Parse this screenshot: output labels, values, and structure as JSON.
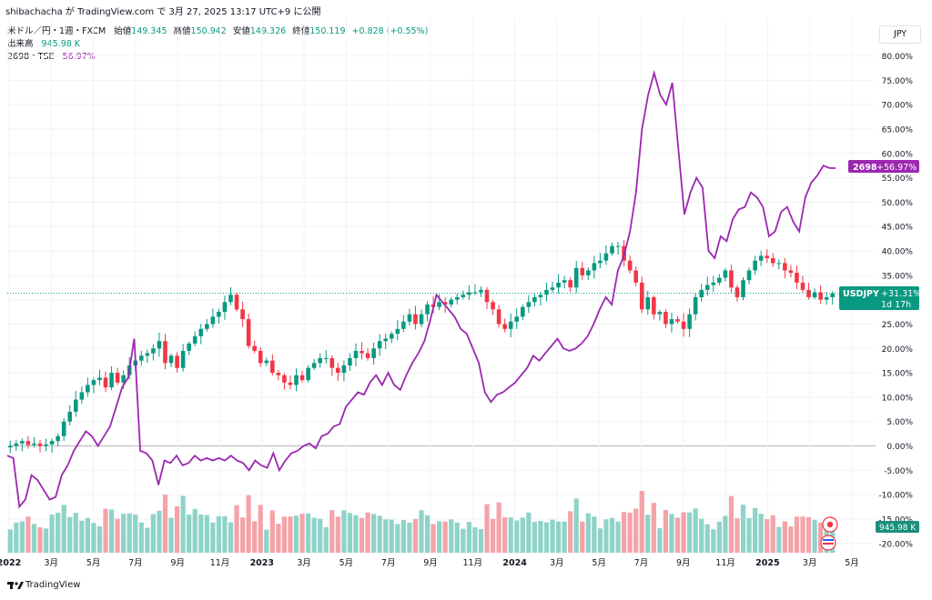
{
  "header": {
    "attribution": "shibachacha が TradingView.com で 3月 27, 2025 13:17 UTC+9 に公開"
  },
  "legend": {
    "symbol": "米ドル／円・1週・FXCM",
    "open_label": "始値",
    "open": "149.345",
    "high_label": "高値",
    "high": "150.942",
    "low_label": "安値",
    "low": "149.326",
    "close_label": "終値",
    "close": "150.119",
    "change": "+0.828 (+0.55%)",
    "volume_label": "出来高",
    "volume": "945.98 K",
    "compare_label": "2698・TSE",
    "compare_value": "56.97%"
  },
  "currency_button": "JPY",
  "price_labels": {
    "compare_tag": "2698",
    "compare_value": "+56.97%",
    "main_tag": "USDJPY",
    "main_value": "+31.31%",
    "countdown": "1d 17h",
    "volume_value": "945.98 K"
  },
  "footer": {
    "brand": "TradingView"
  },
  "colors": {
    "up": "#089981",
    "down": "#f23645",
    "compare": "#9c27b0",
    "vol_up": "#8fd3c8",
    "vol_down": "#f4a3a8"
  },
  "chart_data": {
    "type": "candlestick+line",
    "y_axis": {
      "unit": "%",
      "range": [
        -22,
        82
      ],
      "ticks": [
        80,
        75,
        70,
        65,
        60,
        55,
        50,
        45,
        40,
        35,
        30,
        25,
        20,
        15,
        10,
        5,
        0,
        -5,
        -10,
        -15,
        -20
      ]
    },
    "x_axis": {
      "ticks": [
        "2022",
        "3月",
        "5月",
        "7月",
        "9月",
        "11月",
        "2023",
        "3月",
        "5月",
        "7月",
        "9月",
        "11月",
        "2024",
        "3月",
        "5月",
        "7月",
        "9月",
        "11月",
        "2025",
        "3月",
        "5月"
      ]
    },
    "main_series": {
      "name": "USDJPY",
      "weekly_close_pct": [
        0.0,
        0.5,
        1.0,
        0.2,
        0.5,
        0.0,
        0.3,
        1.0,
        2.0,
        5.0,
        7.0,
        9.5,
        11.0,
        12.5,
        13.5,
        14.0,
        12.0,
        15.0,
        13.0,
        14.5,
        16.5,
        17.5,
        18.5,
        19.0,
        20.0,
        21.5,
        17.0,
        18.5,
        16.0,
        19.5,
        21.0,
        22.5,
        24.0,
        25.0,
        26.5,
        27.5,
        29.5,
        31.0,
        28.0,
        26.0,
        20.5,
        19.5,
        17.0,
        17.5,
        15.0,
        14.5,
        13.0,
        12.5,
        14.5,
        13.5,
        16.0,
        17.0,
        18.0,
        18.0,
        16.0,
        15.0,
        16.5,
        18.0,
        19.5,
        19.0,
        18.0,
        20.0,
        21.5,
        22.0,
        23.0,
        24.0,
        25.5,
        27.0,
        25.0,
        27.0,
        29.0,
        28.5,
        29.5,
        29.0,
        30.0,
        30.5,
        31.0,
        31.5,
        31.5,
        32.0,
        29.5,
        28.0,
        25.0,
        24.0,
        25.5,
        26.5,
        28.5,
        29.5,
        30.5,
        31.0,
        32.0,
        32.5,
        33.5,
        34.0,
        32.5,
        36.5,
        35.0,
        36.0,
        37.5,
        38.0,
        39.5,
        41.0,
        41.0,
        38.0,
        36.0,
        33.5,
        28.0,
        30.5,
        27.0,
        27.5,
        25.0,
        26.0,
        25.5,
        24.0,
        27.0,
        30.5,
        32.0,
        33.0,
        33.5,
        34.5,
        36.0,
        32.5,
        30.5,
        34.0,
        36.0,
        38.0,
        39.0,
        38.5,
        37.5,
        37.5,
        36.0,
        35.5,
        33.5,
        32.0,
        30.5,
        31.5,
        30.0,
        30.5,
        31.3
      ],
      "last_pct": 31.31
    },
    "compare_series": {
      "name": "2698・TSE",
      "weekly_pct": [
        -2.0,
        -2.5,
        -12.5,
        -11.0,
        -6.0,
        -7.0,
        -9.0,
        -11.0,
        -10.5,
        -6.0,
        -4.0,
        -1.0,
        1.0,
        3.0,
        2.0,
        0.0,
        2.0,
        4.0,
        8.0,
        12.0,
        14.0,
        22.0,
        -1.0,
        -1.5,
        -3.0,
        -8.0,
        -3.0,
        -3.5,
        -2.0,
        -4.0,
        -3.5,
        -2.0,
        -3.0,
        -2.5,
        -3.0,
        -2.5,
        -3.0,
        -2.0,
        -3.0,
        -3.5,
        -5.0,
        -3.0,
        -4.0,
        -4.5,
        -1.5,
        -5.0,
        -3.0,
        -1.5,
        -1.0,
        0.0,
        0.5,
        -0.5,
        2.0,
        2.5,
        4.0,
        4.5,
        8.0,
        9.5,
        11.0,
        10.5,
        13.0,
        14.5,
        12.5,
        15.0,
        12.5,
        11.5,
        14.5,
        17.0,
        19.0,
        21.5,
        26.0,
        31.0,
        29.5,
        28.0,
        26.5,
        24.0,
        23.0,
        20.0,
        17.0,
        11.0,
        9.0,
        10.5,
        11.0,
        12.0,
        13.0,
        14.5,
        16.0,
        18.5,
        17.5,
        19.0,
        20.5,
        22.0,
        20.0,
        19.5,
        20.0,
        21.0,
        22.5,
        25.0,
        28.0,
        30.5,
        29.0,
        36.0,
        39.0,
        44.0,
        52.0,
        65.0,
        72.0,
        76.5,
        72.0,
        70.0,
        74.5,
        61.0,
        47.5,
        52.0,
        55.0,
        53.0,
        40.0,
        38.5,
        43.0,
        42.0,
        46.5,
        48.5,
        49.0,
        52.0,
        51.0,
        49.0,
        43.0,
        44.0,
        48.0,
        49.0,
        46.0,
        44.0,
        51.0,
        54.0,
        55.5,
        57.5,
        57.0,
        56.97
      ],
      "last_pct": 56.97
    },
    "volume_series": {
      "name": "出来高",
      "last": "945.98 K"
    }
  }
}
